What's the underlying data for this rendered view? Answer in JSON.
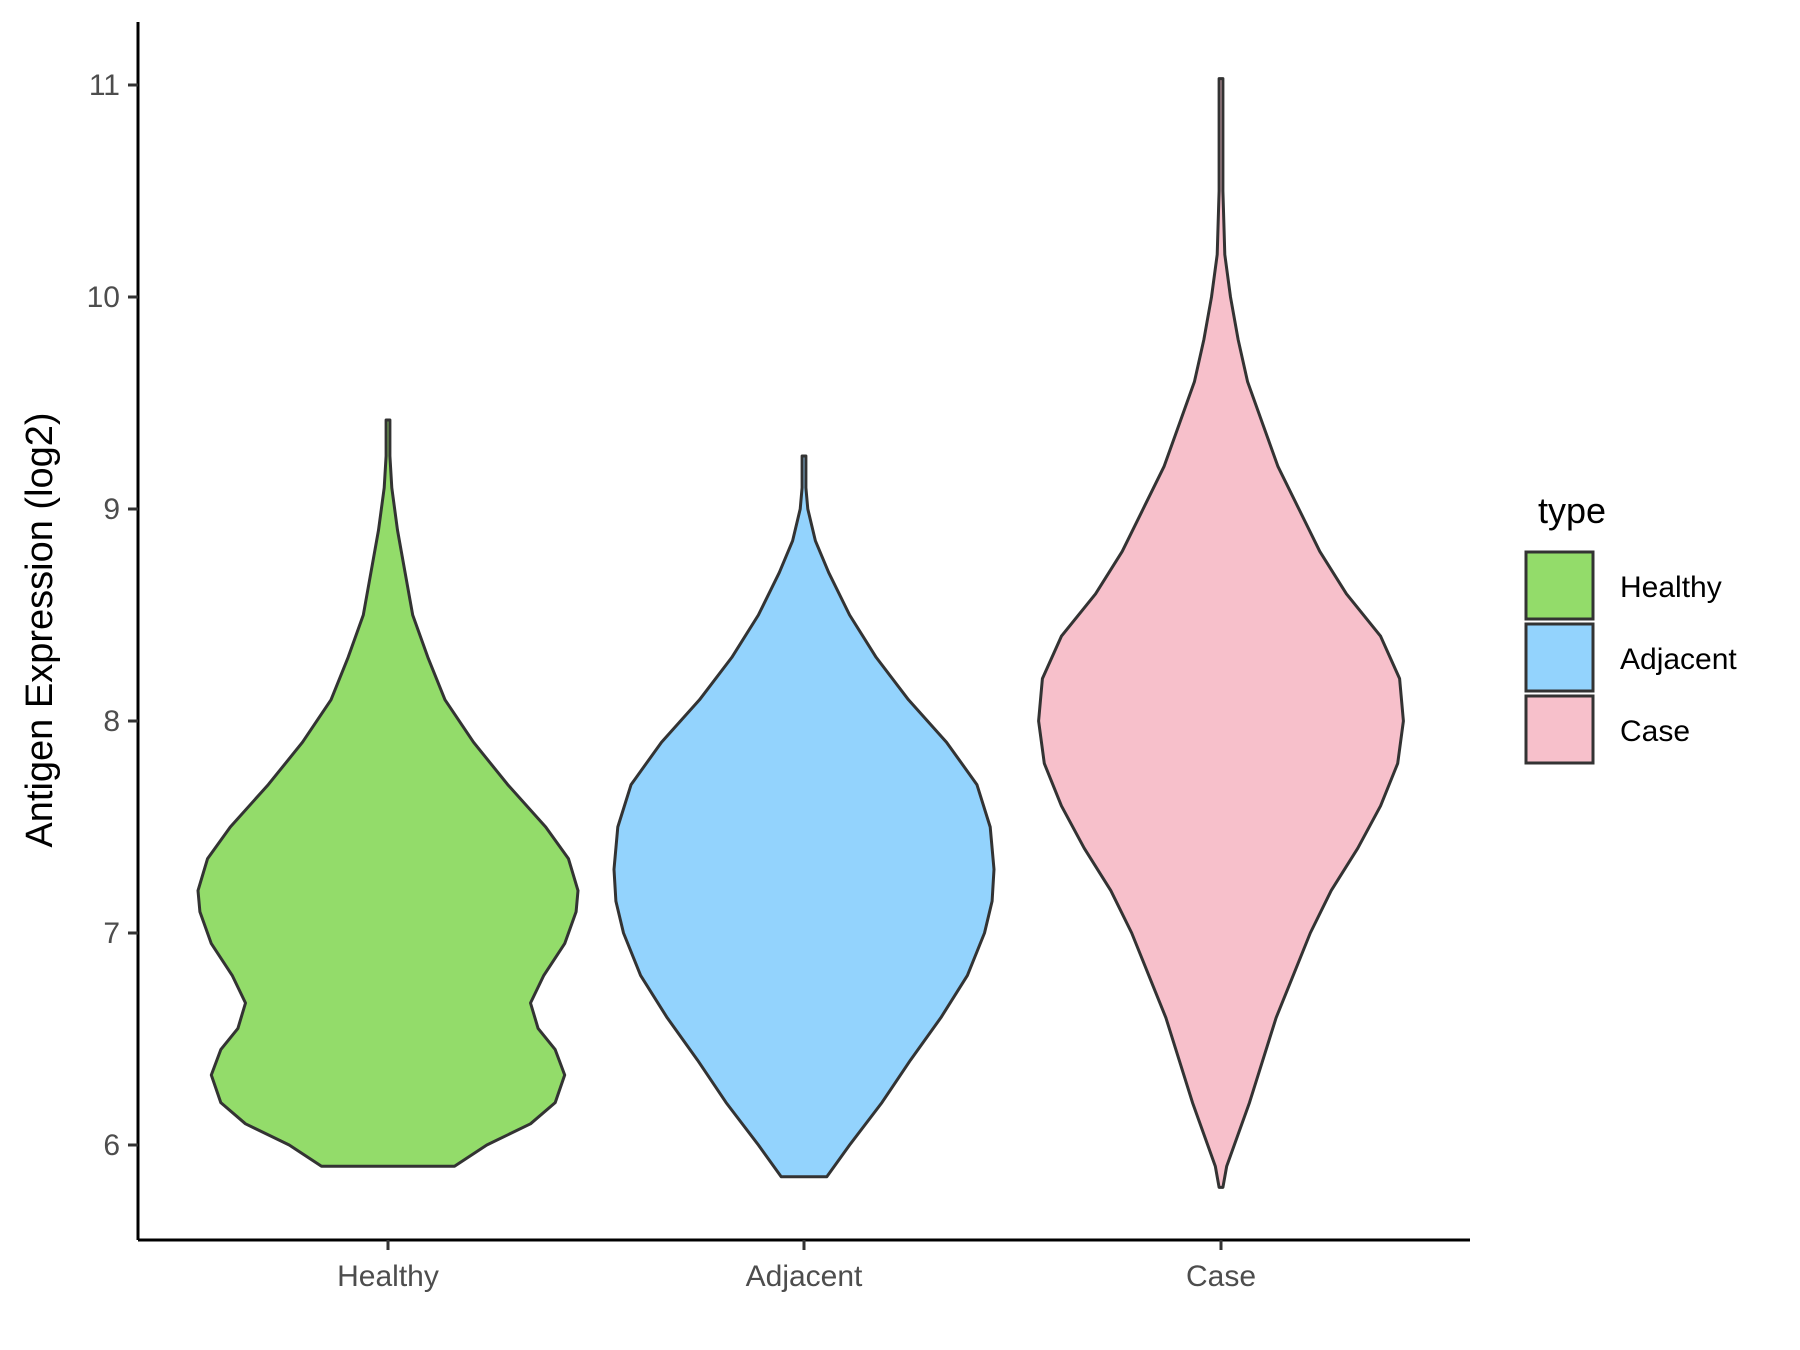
{
  "chart_data": {
    "type": "violin",
    "title": "",
    "xlabel": "",
    "ylabel": "Antigen Expression (log2)",
    "ylim": [
      5.55,
      11.3
    ],
    "yticks": [
      6,
      7,
      8,
      9,
      10,
      11
    ],
    "categories": [
      "Healthy",
      "Adjacent",
      "Case"
    ],
    "grid": false,
    "legend": {
      "title": "type",
      "placement": "right",
      "entries": [
        "Healthy",
        "Adjacent",
        "Case"
      ]
    },
    "colors": {
      "Healthy": "#93dc6a",
      "Adjacent": "#93d3fd",
      "Case": "#f7c0cb",
      "outline": "#333333"
    },
    "series": [
      {
        "name": "Healthy",
        "min": 5.9,
        "max": 9.42,
        "density_profile": [
          [
            5.9,
            0.35
          ],
          [
            6.0,
            0.52
          ],
          [
            6.1,
            0.75
          ],
          [
            6.2,
            0.88
          ],
          [
            6.33,
            0.93
          ],
          [
            6.45,
            0.88
          ],
          [
            6.55,
            0.79
          ],
          [
            6.67,
            0.75
          ],
          [
            6.8,
            0.82
          ],
          [
            6.95,
            0.93
          ],
          [
            7.1,
            0.99
          ],
          [
            7.2,
            1.0
          ],
          [
            7.35,
            0.95
          ],
          [
            7.5,
            0.83
          ],
          [
            7.7,
            0.63
          ],
          [
            7.9,
            0.45
          ],
          [
            8.1,
            0.3
          ],
          [
            8.3,
            0.21
          ],
          [
            8.5,
            0.13
          ],
          [
            8.7,
            0.09
          ],
          [
            8.9,
            0.05
          ],
          [
            9.1,
            0.02
          ],
          [
            9.25,
            0.01
          ],
          [
            9.42,
            0.01
          ]
        ]
      },
      {
        "name": "Adjacent",
        "min": 5.85,
        "max": 9.25,
        "density_profile": [
          [
            5.85,
            0.12
          ],
          [
            6.0,
            0.24
          ],
          [
            6.2,
            0.41
          ],
          [
            6.4,
            0.56
          ],
          [
            6.6,
            0.72
          ],
          [
            6.8,
            0.86
          ],
          [
            7.0,
            0.95
          ],
          [
            7.15,
            0.99
          ],
          [
            7.3,
            1.0
          ],
          [
            7.5,
            0.98
          ],
          [
            7.7,
            0.91
          ],
          [
            7.9,
            0.75
          ],
          [
            8.1,
            0.55
          ],
          [
            8.3,
            0.38
          ],
          [
            8.5,
            0.24
          ],
          [
            8.7,
            0.13
          ],
          [
            8.85,
            0.06
          ],
          [
            9.0,
            0.02
          ],
          [
            9.1,
            0.01
          ],
          [
            9.25,
            0.01
          ]
        ]
      },
      {
        "name": "Case",
        "min": 5.8,
        "max": 11.03,
        "density_profile": [
          [
            5.8,
            0.01
          ],
          [
            5.9,
            0.03
          ],
          [
            6.0,
            0.07
          ],
          [
            6.2,
            0.15
          ],
          [
            6.4,
            0.22
          ],
          [
            6.6,
            0.29
          ],
          [
            6.8,
            0.38
          ],
          [
            7.0,
            0.47
          ],
          [
            7.2,
            0.58
          ],
          [
            7.4,
            0.72
          ],
          [
            7.6,
            0.84
          ],
          [
            7.8,
            0.93
          ],
          [
            8.0,
            0.96
          ],
          [
            8.2,
            0.94
          ],
          [
            8.4,
            0.84
          ],
          [
            8.6,
            0.66
          ],
          [
            8.8,
            0.52
          ],
          [
            9.0,
            0.41
          ],
          [
            9.2,
            0.3
          ],
          [
            9.4,
            0.22
          ],
          [
            9.6,
            0.14
          ],
          [
            9.8,
            0.09
          ],
          [
            10.0,
            0.05
          ],
          [
            10.2,
            0.02
          ],
          [
            10.5,
            0.01
          ],
          [
            11.03,
            0.01
          ]
        ]
      }
    ]
  }
}
